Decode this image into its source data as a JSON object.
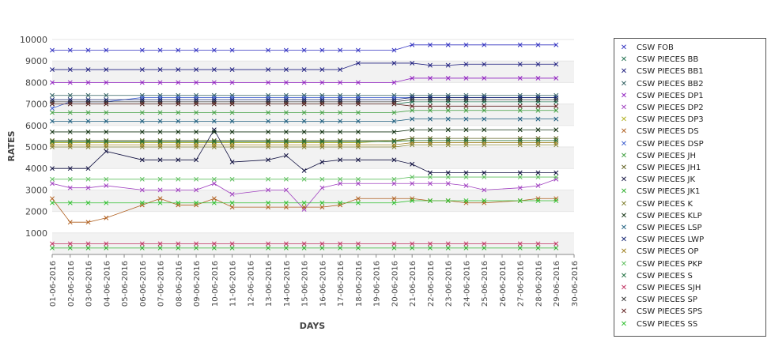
{
  "chart_data": {
    "type": "line",
    "xlabel": "DAYS",
    "ylabel": "RATES",
    "ylim": [
      0,
      10000
    ],
    "y_ticks": [
      1000,
      2000,
      3000,
      4000,
      5000,
      6000,
      7000,
      8000,
      9000,
      10000
    ],
    "grid": "horizontal alternating bands",
    "legend_position": "right",
    "marker": "x",
    "x_ticks": [
      "01-06-2016",
      "02-06-2016",
      "03-06-2016",
      "04-06-2016",
      "05-06-2016",
      "06-06-2016",
      "07-06-2016",
      "08-06-2016",
      "09-06-2016",
      "10-06-2016",
      "11-06-2016",
      "12-06-2016",
      "13-06-2016",
      "14-06-2016",
      "15-06-2016",
      "16-06-2016",
      "17-06-2016",
      "18-06-2016",
      "19-06-2016",
      "20-06-2016",
      "21-06-2016",
      "22-06-2016",
      "23-06-2016",
      "24-06-2016",
      "25-06-2016",
      "26-06-2016",
      "27-06-2016",
      "28-06-2016",
      "29-06-2016",
      "30-06-2016"
    ],
    "x": [
      "01-06-2016",
      "02-06-2016",
      "03-06-2016",
      "04-06-2016",
      "06-06-2016",
      "07-06-2016",
      "08-06-2016",
      "09-06-2016",
      "10-06-2016",
      "11-06-2016",
      "13-06-2016",
      "14-06-2016",
      "15-06-2016",
      "16-06-2016",
      "17-06-2016",
      "18-06-2016",
      "20-06-2016",
      "21-06-2016",
      "22-06-2016",
      "23-06-2016",
      "24-06-2016",
      "25-06-2016",
      "27-06-2016",
      "28-06-2016",
      "29-06-2016"
    ],
    "series": [
      {
        "name": "CSW FOB",
        "color": "#3030c0",
        "values": [
          9500,
          9500,
          9500,
          9500,
          9500,
          9500,
          9500,
          9500,
          9500,
          9500,
          9500,
          9500,
          9500,
          9500,
          9500,
          9500,
          9500,
          9750,
          9750,
          9750,
          9750,
          9750,
          9750,
          9750,
          9750
        ]
      },
      {
        "name": "CSW PIECES BB",
        "color": "#207050",
        "values": [
          7000,
          7000,
          7000,
          7000,
          7000,
          7000,
          7000,
          7000,
          7000,
          7000,
          7000,
          7000,
          7000,
          7000,
          7000,
          7000,
          7000,
          7100,
          7100,
          7100,
          7100,
          7100,
          7100,
          7100,
          7100
        ]
      },
      {
        "name": "CSW PIECES BB1",
        "color": "#202080",
        "values": [
          8600,
          8600,
          8600,
          8600,
          8600,
          8600,
          8600,
          8600,
          8600,
          8600,
          8600,
          8600,
          8600,
          8600,
          8600,
          8900,
          8900,
          8900,
          8800,
          8800,
          8850,
          8850,
          8850,
          8850,
          8850
        ]
      },
      {
        "name": "CSW PIECES BB2",
        "color": "#306060",
        "values": [
          7400,
          7400,
          7400,
          7400,
          7400,
          7400,
          7400,
          7400,
          7400,
          7400,
          7400,
          7400,
          7400,
          7400,
          7400,
          7400,
          7400,
          7400,
          7400,
          7400,
          7400,
          7400,
          7400,
          7400,
          7400
        ]
      },
      {
        "name": "CSW PIECES DP1",
        "color": "#9020c0",
        "values": [
          8000,
          8000,
          8000,
          8000,
          8000,
          8000,
          8000,
          8000,
          8000,
          8000,
          8000,
          8000,
          8000,
          8000,
          8000,
          8000,
          8000,
          8200,
          8200,
          8200,
          8200,
          8200,
          8200,
          8200,
          8200
        ]
      },
      {
        "name": "CSW PIECES DP2",
        "color": "#a040c0",
        "values": [
          3300,
          3100,
          3100,
          3200,
          3000,
          3000,
          3000,
          3000,
          3300,
          2800,
          3000,
          3000,
          2100,
          3100,
          3300,
          3300,
          3300,
          3300,
          3300,
          3300,
          3200,
          3000,
          3100,
          3200,
          3500
        ]
      },
      {
        "name": "CSW PIECES DP3",
        "color": "#b0b020",
        "values": [
          5200,
          5200,
          5200,
          5200,
          5200,
          5200,
          5200,
          5200,
          5200,
          5200,
          5200,
          5200,
          5200,
          5200,
          5200,
          5200,
          5300,
          5300,
          5300,
          5300,
          5300,
          5300,
          5300,
          5300,
          5300
        ]
      },
      {
        "name": "CSW PIECES DS",
        "color": "#b06020",
        "values": [
          2600,
          1500,
          1500,
          1700,
          2300,
          2600,
          2300,
          2300,
          2600,
          2200,
          2200,
          2200,
          2200,
          2200,
          2300,
          2600,
          2600,
          2600,
          2500,
          2500,
          2400,
          2400,
          2500,
          2600,
          2600
        ]
      },
      {
        "name": "CSW PIECES DSP",
        "color": "#4060d0",
        "values": [
          6800,
          7100,
          7100,
          7100,
          7300,
          7300,
          7300,
          7300,
          7300,
          7300,
          7300,
          7300,
          7300,
          7300,
          7300,
          7300,
          7300,
          7300,
          7300,
          7300,
          7300,
          7300,
          7300,
          7300,
          7300
        ]
      },
      {
        "name": "CSW PIECES JH",
        "color": "#40a040",
        "values": [
          6600,
          6600,
          6600,
          6600,
          6600,
          6600,
          6600,
          6600,
          6600,
          6600,
          6600,
          6600,
          6600,
          6600,
          6600,
          6600,
          6600,
          6700,
          6700,
          6700,
          6700,
          6700,
          6700,
          6700,
          6700
        ]
      },
      {
        "name": "CSW PIECES JH1",
        "color": "#606020",
        "values": [
          5300,
          5300,
          5300,
          5300,
          5300,
          5300,
          5300,
          5300,
          5300,
          5300,
          5300,
          5300,
          5300,
          5300,
          5300,
          5300,
          5300,
          5400,
          5400,
          5400,
          5400,
          5400,
          5400,
          5400,
          5400
        ]
      },
      {
        "name": "CSW PIECES JK",
        "color": "#101040",
        "values": [
          4000,
          4000,
          4000,
          4800,
          4400,
          4400,
          4400,
          4400,
          5800,
          4300,
          4400,
          4600,
          3900,
          4300,
          4400,
          4400,
          4400,
          4200,
          3800,
          3800,
          3800,
          3800,
          3800,
          3800,
          3800
        ]
      },
      {
        "name": "CSW PIECES JK1",
        "color": "#30b030",
        "values": [
          300,
          300,
          300,
          300,
          300,
          300,
          300,
          300,
          300,
          300,
          300,
          300,
          300,
          300,
          300,
          300,
          300,
          300,
          300,
          300,
          300,
          300,
          300,
          300,
          300
        ]
      },
      {
        "name": "CSW PIECES K",
        "color": "#808030",
        "values": [
          5000,
          5000,
          5000,
          5000,
          5000,
          5000,
          5000,
          5000,
          5000,
          5000,
          5000,
          5000,
          5000,
          5000,
          5000,
          5000,
          5000,
          5100,
          5100,
          5100,
          5100,
          5100,
          5100,
          5100,
          5100
        ]
      },
      {
        "name": "CSW PIECES KLP",
        "color": "#103010",
        "values": [
          5700,
          5700,
          5700,
          5700,
          5700,
          5700,
          5700,
          5700,
          5700,
          5700,
          5700,
          5700,
          5700,
          5700,
          5700,
          5700,
          5700,
          5800,
          5800,
          5800,
          5800,
          5800,
          5800,
          5800,
          5800
        ]
      },
      {
        "name": "CSW PIECES LSP",
        "color": "#206080",
        "values": [
          6200,
          6200,
          6200,
          6200,
          6200,
          6200,
          6200,
          6200,
          6200,
          6200,
          6200,
          6200,
          6200,
          6200,
          6200,
          6200,
          6200,
          6300,
          6300,
          6300,
          6300,
          6300,
          6300,
          6300,
          6300
        ]
      },
      {
        "name": "CSW PIECES LWP",
        "color": "#102070",
        "values": [
          7200,
          7200,
          7200,
          7200,
          7200,
          7200,
          7200,
          7200,
          7200,
          7200,
          7200,
          7200,
          7200,
          7200,
          7200,
          7200,
          7200,
          7300,
          7300,
          7300,
          7300,
          7300,
          7300,
          7300,
          7300
        ]
      },
      {
        "name": "CSW PIECES OP",
        "color": "#a08020",
        "values": [
          5100,
          5100,
          5100,
          5100,
          5100,
          5100,
          5100,
          5100,
          5100,
          5100,
          5100,
          5100,
          5100,
          5100,
          5100,
          5100,
          5100,
          5200,
          5200,
          5200,
          5200,
          5200,
          5200,
          5200,
          5200
        ]
      },
      {
        "name": "CSW PIECES PKP",
        "color": "#60c060",
        "values": [
          3500,
          3500,
          3500,
          3500,
          3500,
          3500,
          3500,
          3500,
          3500,
          3500,
          3500,
          3500,
          3500,
          3500,
          3500,
          3500,
          3500,
          3600,
          3600,
          3600,
          3600,
          3600,
          3600,
          3600,
          3600
        ]
      },
      {
        "name": "CSW PIECES S",
        "color": "#207040",
        "values": [
          5250,
          5250,
          5250,
          5250,
          5250,
          5250,
          5250,
          5250,
          5250,
          5250,
          5250,
          5250,
          5250,
          5250,
          5250,
          5250,
          5250,
          5300,
          5300,
          5300,
          5300,
          5300,
          5300,
          5300,
          5300
        ]
      },
      {
        "name": "CSW PIECES SJH",
        "color": "#c03060",
        "values": [
          500,
          500,
          500,
          500,
          500,
          500,
          500,
          500,
          500,
          500,
          500,
          500,
          500,
          500,
          500,
          500,
          500,
          500,
          500,
          500,
          500,
          500,
          500,
          500,
          500
        ]
      },
      {
        "name": "CSW PIECES SP",
        "color": "#303030",
        "values": [
          7100,
          7100,
          7100,
          7100,
          7100,
          7100,
          7100,
          7100,
          7100,
          7100,
          7100,
          7100,
          7100,
          7100,
          7100,
          7100,
          7100,
          7200,
          7200,
          7200,
          7200,
          7200,
          7200,
          7200,
          7200
        ]
      },
      {
        "name": "CSW PIECES SPS",
        "color": "#602020",
        "values": [
          7000,
          7000,
          7000,
          7000,
          7000,
          7000,
          7000,
          7000,
          7000,
          7000,
          7000,
          7000,
          7000,
          7000,
          7000,
          7000,
          7000,
          6900,
          6900,
          6900,
          6900,
          6900,
          6900,
          6900,
          6900
        ]
      },
      {
        "name": "CSW PIECES SS",
        "color": "#30c030",
        "values": [
          2400,
          2400,
          2400,
          2400,
          2400,
          2400,
          2400,
          2400,
          2400,
          2400,
          2400,
          2400,
          2400,
          2400,
          2400,
          2400,
          2400,
          2500,
          2500,
          2500,
          2500,
          2500,
          2500,
          2500,
          2500
        ]
      }
    ],
    "legend_symbol": "✕"
  }
}
